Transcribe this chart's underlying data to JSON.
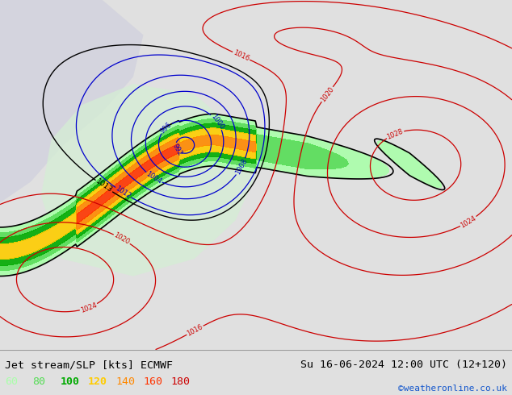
{
  "title_left": "Jet stream/SLP [kts] ECMWF",
  "title_right": "Su 16-06-2024 12:00 UTC (12+120)",
  "credit": "©weatheronline.co.uk",
  "legend_values": [
    60,
    80,
    100,
    120,
    140,
    160,
    180
  ],
  "legend_colors": [
    "#aaffaa",
    "#55dd55",
    "#00aa00",
    "#ffcc00",
    "#ff8800",
    "#ff3300",
    "#cc0000"
  ],
  "land_color": "#c8e8c8",
  "ocean_color": "#d8d8e0",
  "bottom_bar_color": "#e0e0e0",
  "figsize": [
    6.34,
    4.9
  ],
  "dpi": 100,
  "slp_low_color": "#0000cc",
  "slp_high_color": "#cc0000",
  "jet_levels": [
    60,
    80,
    100,
    120,
    140,
    160,
    180,
    200
  ],
  "jet_fill_colors": [
    "#aaffaa",
    "#55dd55",
    "#00aa00",
    "#ffcc00",
    "#ff8800",
    "#ff3300",
    "#cc0000"
  ]
}
